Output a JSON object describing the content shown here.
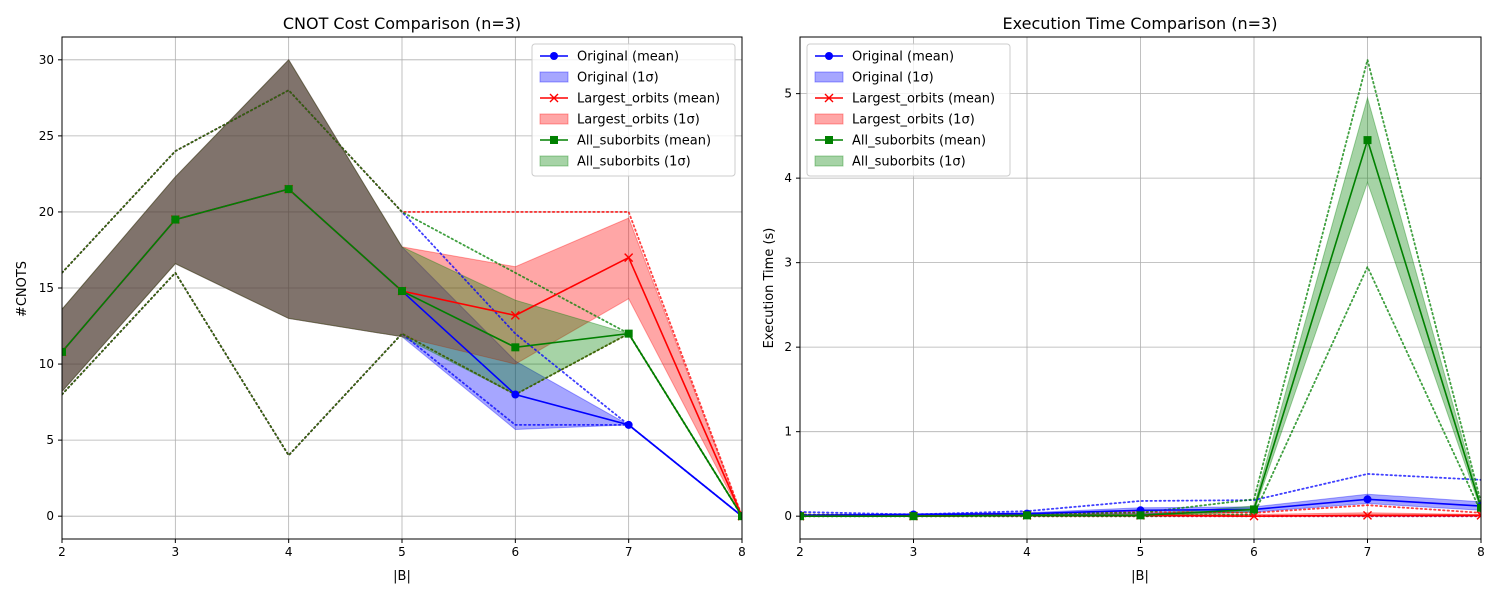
{
  "chart_data": [
    {
      "type": "line",
      "title": "CNOT Cost Comparison (n=3)",
      "xlabel": "|B|",
      "ylabel": "#CNOTS",
      "xlim": [
        2,
        8
      ],
      "ylim": [
        -1.5,
        31.5
      ],
      "x_ticks": [
        2,
        3,
        4,
        5,
        6,
        7,
        8
      ],
      "y_ticks": [
        0,
        5,
        10,
        15,
        20,
        25,
        30
      ],
      "grid": true,
      "legend_position": "top-right",
      "series": [
        {
          "name": "Original",
          "color": "#0000ff",
          "marker": "circle",
          "x": [
            2,
            3,
            4,
            5,
            6,
            7,
            8
          ],
          "mean": [
            10.8,
            19.5,
            21.5,
            14.8,
            8.0,
            6.0,
            0.0
          ],
          "lower_1sigma": [
            8.2,
            16.6,
            13.0,
            11.8,
            5.7,
            6.0,
            0.0
          ],
          "upper_1sigma": [
            13.6,
            22.3,
            30.0,
            17.7,
            10.2,
            6.0,
            0.0
          ],
          "min": [
            8.0,
            16.0,
            4.0,
            12.0,
            6.0,
            6.0,
            0.0
          ],
          "max": [
            16.0,
            24.0,
            28.0,
            20.0,
            12.0,
            6.0,
            0.0
          ]
        },
        {
          "name": "Largest_orbits",
          "color": "#ff0000",
          "marker": "x",
          "x": [
            2,
            3,
            4,
            5,
            6,
            7,
            8
          ],
          "mean": [
            10.8,
            19.5,
            21.5,
            14.8,
            13.2,
            17.0,
            0.0
          ],
          "lower_1sigma": [
            8.2,
            16.6,
            13.0,
            11.8,
            10.0,
            14.3,
            0.0
          ],
          "upper_1sigma": [
            13.6,
            22.3,
            30.0,
            17.7,
            16.4,
            19.6,
            0.0
          ],
          "min": [
            8.0,
            16.0,
            4.0,
            12.0,
            8.0,
            12.0,
            0.0
          ],
          "max": [
            16.0,
            24.0,
            28.0,
            20.0,
            20.0,
            20.0,
            0.0
          ]
        },
        {
          "name": "All_suborbits",
          "color": "#008000",
          "marker": "square",
          "x": [
            2,
            3,
            4,
            5,
            6,
            7,
            8
          ],
          "mean": [
            10.8,
            19.5,
            21.5,
            14.8,
            11.1,
            12.0,
            0.0
          ],
          "lower_1sigma": [
            8.2,
            16.6,
            13.0,
            11.8,
            8.0,
            12.0,
            0.0
          ],
          "upper_1sigma": [
            13.6,
            22.3,
            30.0,
            17.7,
            14.2,
            12.0,
            0.0
          ],
          "min": [
            8.0,
            16.0,
            4.0,
            12.0,
            8.0,
            12.0,
            0.0
          ],
          "max": [
            16.0,
            24.0,
            28.0,
            20.0,
            16.0,
            12.0,
            0.0
          ]
        }
      ],
      "legend": [
        "Original (mean)",
        "Original (1σ)",
        "Largest_orbits (mean)",
        "Largest_orbits (1σ)",
        "All_suborbits (mean)",
        "All_suborbits (1σ)"
      ]
    },
    {
      "type": "line",
      "title": "Execution Time Comparison (n=3)",
      "xlabel": "|B|",
      "ylabel": "Execution Time (s)",
      "xlim": [
        2,
        8
      ],
      "ylim": [
        -0.27,
        5.67
      ],
      "x_ticks": [
        2,
        3,
        4,
        5,
        6,
        7,
        8
      ],
      "y_ticks": [
        0,
        1,
        2,
        3,
        4,
        5
      ],
      "grid": true,
      "legend_position": "top-left",
      "series": [
        {
          "name": "Original",
          "color": "#0000ff",
          "marker": "circle",
          "x": [
            2,
            3,
            4,
            5,
            6,
            7,
            8
          ],
          "mean": [
            0.01,
            0.02,
            0.03,
            0.07,
            0.08,
            0.2,
            0.12
          ],
          "lower_1sigma": [
            0.0,
            0.01,
            0.02,
            0.03,
            0.05,
            0.15,
            0.07
          ],
          "upper_1sigma": [
            0.02,
            0.03,
            0.04,
            0.1,
            0.11,
            0.26,
            0.17
          ],
          "min": [
            0.0,
            0.0,
            0.0,
            0.0,
            0.0,
            0.0,
            0.0
          ],
          "max": [
            0.05,
            0.02,
            0.06,
            0.18,
            0.19,
            0.5,
            0.43
          ]
        },
        {
          "name": "Largest_orbits",
          "color": "#ff0000",
          "marker": "x",
          "x": [
            2,
            3,
            4,
            5,
            6,
            7,
            8
          ],
          "mean": [
            0.0,
            0.0,
            0.01,
            0.01,
            0.0,
            0.01,
            0.01
          ],
          "lower_1sigma": [
            0.0,
            0.0,
            0.0,
            0.0,
            0.0,
            0.0,
            0.0
          ],
          "upper_1sigma": [
            0.01,
            0.01,
            0.02,
            0.03,
            0.02,
            0.04,
            0.02
          ],
          "min": [
            0.0,
            0.0,
            0.0,
            0.0,
            0.0,
            0.0,
            0.0
          ],
          "max": [
            0.02,
            0.01,
            0.03,
            0.05,
            0.04,
            0.13,
            0.04
          ]
        },
        {
          "name": "All_suborbits",
          "color": "#008000",
          "marker": "square",
          "x": [
            2,
            3,
            4,
            5,
            6,
            7,
            8
          ],
          "mean": [
            0.0,
            0.0,
            0.01,
            0.01,
            0.08,
            4.45,
            0.1
          ],
          "lower_1sigma": [
            0.0,
            0.0,
            0.0,
            0.0,
            0.05,
            3.95,
            0.07
          ],
          "upper_1sigma": [
            0.01,
            0.01,
            0.02,
            0.02,
            0.12,
            4.95,
            0.13
          ],
          "min": [
            0.0,
            0.0,
            0.0,
            0.0,
            0.02,
            2.95,
            0.05
          ],
          "max": [
            0.02,
            0.01,
            0.03,
            0.04,
            0.2,
            5.4,
            0.16
          ]
        }
      ],
      "legend": [
        "Original (mean)",
        "Original (1σ)",
        "Largest_orbits (mean)",
        "Largest_orbits (1σ)",
        "All_suborbits (mean)",
        "All_suborbits (1σ)"
      ]
    }
  ]
}
